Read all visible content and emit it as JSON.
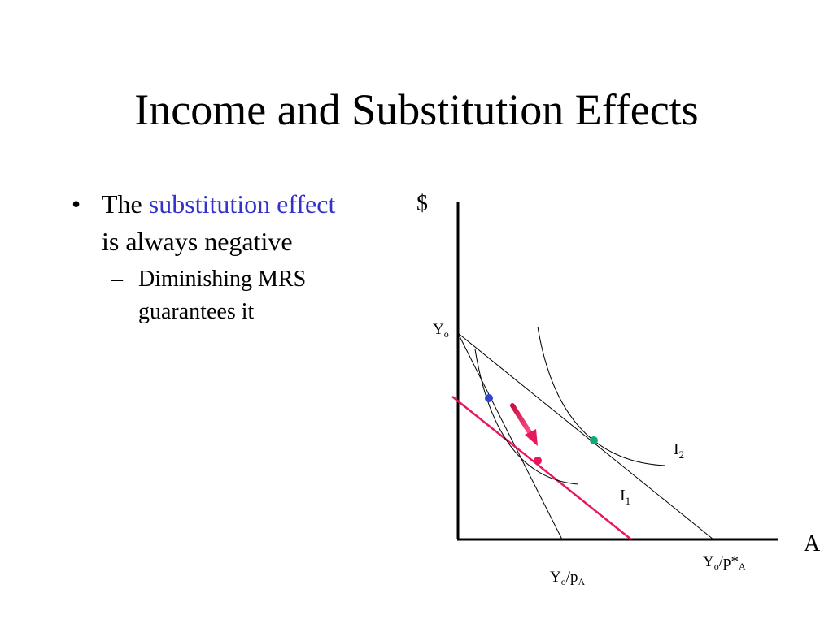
{
  "slide": {
    "title": "Income and Substitution Effects",
    "bullet": {
      "lead": "The",
      "highlight": "substitution effect",
      "rest": "is always negative"
    },
    "sub_bullet": {
      "line1": "Diminishing MRS",
      "line2": "guarantees it"
    }
  },
  "diagram": {
    "y_axis_label": "$",
    "x_axis_label": "A",
    "y_intercept_label": {
      "main": "Y",
      "sub": "o"
    },
    "x_intercept_label_1": {
      "main": "Y",
      "sub": "o",
      "mid": "/p",
      "sub2": "A"
    },
    "x_intercept_label_2": {
      "main": "Y",
      "sub": "o",
      "mid": "/p*",
      "sub2": "A"
    },
    "curve_label_1": {
      "main": "I",
      "sub": "1"
    },
    "curve_label_2": {
      "main": "I",
      "sub": "2"
    },
    "colors": {
      "compensated_line": "#e8175d",
      "arrow": "#e8175d",
      "point_original": "#3344cc",
      "point_new": "#11aa77",
      "point_compensated": "#e8175d",
      "accent_text": "#3333cc"
    }
  }
}
